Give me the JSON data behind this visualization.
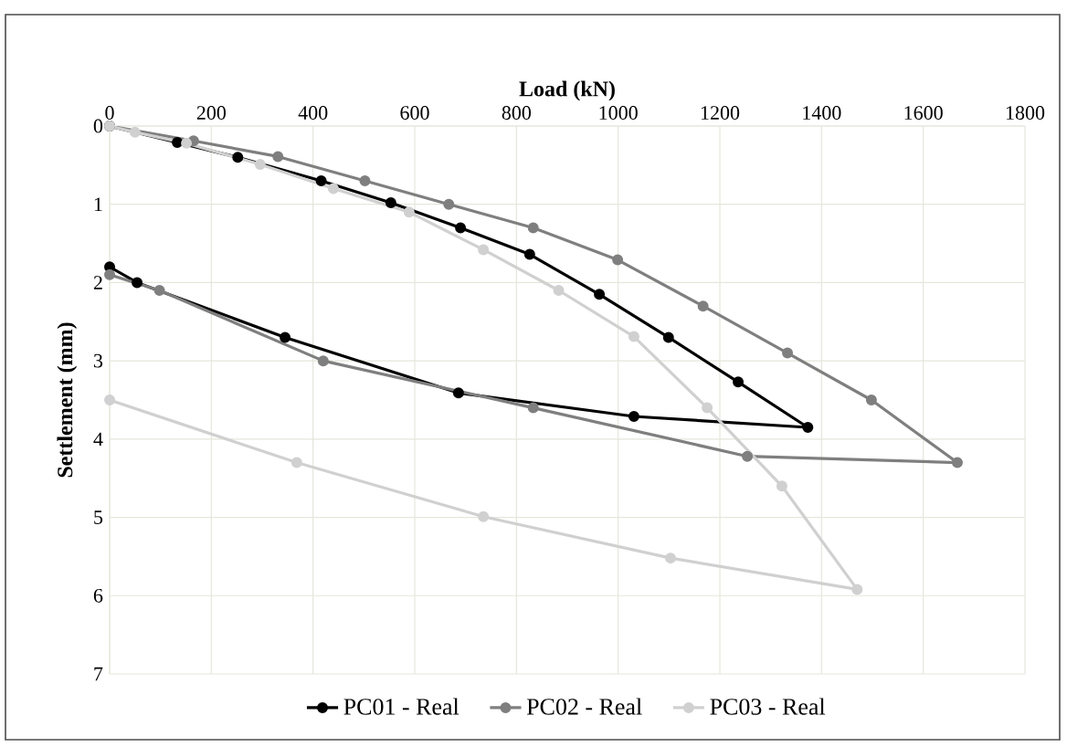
{
  "chart_data": {
    "type": "line",
    "xlabel": "Load (kN)",
    "ylabel": "Settlement (mm)",
    "xlim": [
      0,
      1800
    ],
    "xticks": [
      0,
      200,
      400,
      600,
      800,
      1000,
      1200,
      1400,
      1600,
      1800
    ],
    "ylim": [
      7,
      0
    ],
    "yticks": [
      0,
      1,
      2,
      3,
      4,
      5,
      6,
      7
    ],
    "grid": true,
    "legend": "bottom",
    "marker": "circle",
    "line_style": "solid",
    "series": [
      {
        "name": "PC01 - Real",
        "color": "#000000",
        "x": [
          0,
          133,
          252,
          416,
          553,
          690,
          826,
          963,
          1099,
          1236,
          1373,
          1031,
          686,
          345,
          54,
          0
        ],
        "values": [
          0,
          0.21,
          0.4,
          0.7,
          0.98,
          1.3,
          1.64,
          2.15,
          2.7,
          3.27,
          3.85,
          3.71,
          3.41,
          2.7,
          2.0,
          1.8
        ]
      },
      {
        "name": "PC02 - Real",
        "color": "#7f7f7f",
        "x": [
          0,
          165,
          331,
          502,
          667,
          833,
          999,
          1167,
          1333,
          1498,
          1667,
          1254,
          833,
          420,
          98,
          0
        ],
        "values": [
          0,
          0.19,
          0.39,
          0.7,
          1.0,
          1.3,
          1.71,
          2.3,
          2.9,
          3.5,
          4.3,
          4.22,
          3.6,
          3.0,
          2.1,
          1.9
        ]
      },
      {
        "name": "PC03 - Real",
        "color": "#d0d0d0",
        "x": [
          0,
          50,
          151,
          296,
          440,
          589,
          735,
          883,
          1031,
          1175,
          1322,
          1470,
          1103,
          735,
          368,
          0
        ],
        "values": [
          0,
          0.08,
          0.22,
          0.49,
          0.8,
          1.1,
          1.58,
          2.1,
          2.69,
          3.6,
          4.6,
          5.92,
          5.52,
          4.99,
          4.3,
          3.5
        ]
      }
    ]
  }
}
